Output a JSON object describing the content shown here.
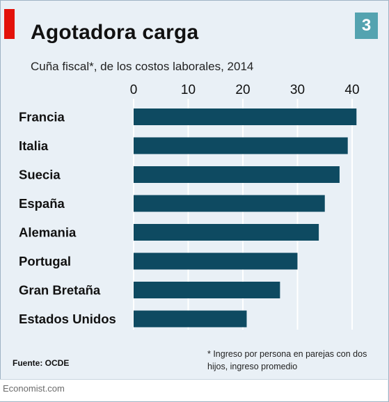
{
  "header": {
    "title": "Agotadora carga",
    "subtitle": "Cuña fiscal*, de los costos laborales, 2014",
    "badge": "3"
  },
  "chart_data": {
    "type": "bar",
    "orientation": "horizontal",
    "title": "Agotadora carga",
    "subtitle": "Cuña fiscal*, de los costos laborales, 2014",
    "categories": [
      "Francia",
      "Italia",
      "Suecia",
      "España",
      "Alemania",
      "Portugal",
      "Gran Bretaña",
      "Estados Unidos"
    ],
    "values": [
      40.8,
      39.2,
      37.7,
      35.0,
      33.9,
      30.0,
      26.8,
      20.7
    ],
    "xlim": [
      0,
      40
    ],
    "xticks": [
      "0",
      "10",
      "20",
      "30",
      "40"
    ],
    "tick_values": [
      0,
      10,
      20,
      30,
      40
    ],
    "grid": true,
    "bar_color": "#0e4a61"
  },
  "footnote": "* Ingreso por persona en parejas con dos hijos, ingreso promedio",
  "source": "Fuente: OCDE",
  "footer": "Economist.com",
  "colors": {
    "background": "#e9f0f6",
    "accent_red": "#e3120b",
    "badge": "#54a3b0",
    "bar": "#0e4a61",
    "grid": "#ffffff"
  }
}
